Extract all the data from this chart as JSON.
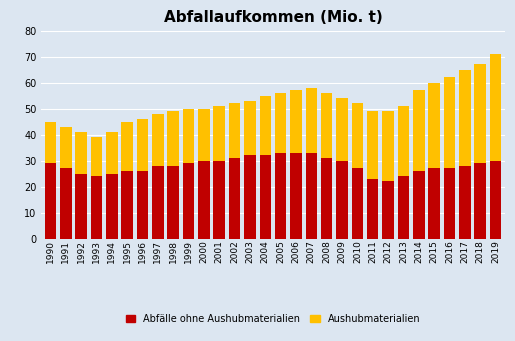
{
  "title": "Abfallaufkommen (Mio. t)",
  "years": [
    1990,
    1991,
    1992,
    1993,
    1994,
    1995,
    1996,
    1997,
    1998,
    1999,
    2000,
    2001,
    2002,
    2003,
    2004,
    2005,
    2006,
    2007,
    2008,
    2009,
    2010,
    2011,
    2012,
    2013,
    2014,
    2015,
    2016,
    2017,
    2018,
    2019
  ],
  "abfaelle": [
    29,
    27,
    25,
    24,
    25,
    26,
    26,
    28,
    28,
    29,
    30,
    30,
    31,
    32,
    32,
    33,
    33,
    33,
    31,
    30,
    27,
    23,
    22,
    24,
    26,
    27,
    27,
    28,
    29,
    30
  ],
  "aushub": [
    16,
    16,
    16,
    15,
    16,
    19,
    20,
    20,
    21,
    21,
    20,
    21,
    21,
    21,
    23,
    23,
    24,
    25,
    25,
    24,
    25,
    26,
    27,
    27,
    31,
    33,
    35,
    37,
    38,
    41
  ],
  "color_abfaelle": "#c00000",
  "color_aushub": "#ffc000",
  "background_color": "#dce6f1",
  "legend_abfaelle": "Abfälle ohne Aushubmaterialien",
  "legend_aushub": "Aushubmaterialien",
  "ylim": [
    0,
    80
  ],
  "yticks": [
    0,
    10,
    20,
    30,
    40,
    50,
    60,
    70,
    80
  ],
  "grid_color": "#ffffff",
  "title_fontsize": 11,
  "tick_fontsize": 6.5,
  "legend_fontsize": 7
}
